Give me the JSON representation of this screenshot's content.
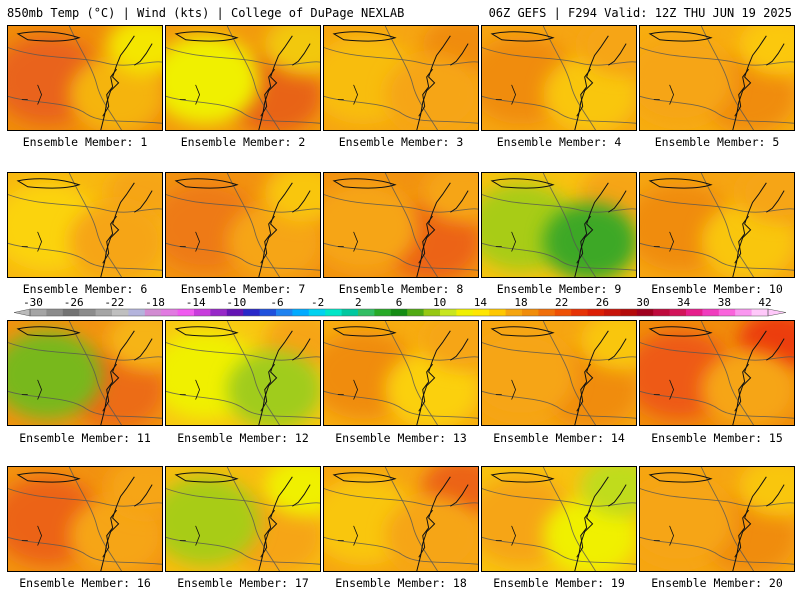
{
  "header": {
    "left": "850mb Temp (°C) | Wind (kts) | College of DuPage NEXLAB",
    "right": "06Z GEFS | F294 Valid: 12Z THU JUN 19 2025"
  },
  "colorbar": {
    "labels": [
      "-30",
      "-26",
      "-22",
      "-18",
      "-14",
      "-10",
      "-6",
      "-2",
      "2",
      "6",
      "10",
      "14",
      "18",
      "22",
      "26",
      "30",
      "34",
      "38",
      "42"
    ],
    "colors": [
      "#a5a5a5",
      "#8c8c8c",
      "#737373",
      "#8c8c8c",
      "#a5a5a5",
      "#bfbfbf",
      "#b4b4dc",
      "#d28cd2",
      "#e17ae1",
      "#f05af0",
      "#c83cdc",
      "#9628c8",
      "#6414b4",
      "#2828c8",
      "#1e50dc",
      "#1e82f0",
      "#00aaff",
      "#00d2f0",
      "#00e6c8",
      "#00c8a0",
      "#32be64",
      "#28aa28",
      "#148c14",
      "#50aa14",
      "#96c814",
      "#c8e61e",
      "#f0f000",
      "#ffe600",
      "#ffc800",
      "#f5a50f",
      "#f08c0a",
      "#f06e0a",
      "#ee5005",
      "#e63205",
      "#dc1e05",
      "#c8140a",
      "#b40a0a",
      "#a0001e",
      "#be0a3c",
      "#d2145a",
      "#e61e8c",
      "#f03cbe",
      "#fa64dc",
      "#fa96f0",
      "#ffc8fa"
    ]
  },
  "panels": [
    {
      "caption": "Ensemble Member: 1",
      "base": "#f08c0a",
      "blobs": [
        {
          "c": "#e9641e"
        },
        {
          "c": "#f5b40c"
        },
        {
          "c": "#f4e600"
        }
      ]
    },
    {
      "caption": "Ensemble Member: 2",
      "base": "#f29a0c",
      "blobs": [
        {
          "c": "#e86416"
        },
        {
          "c": "#f2c80c"
        },
        {
          "c": "#f0f000"
        }
      ]
    },
    {
      "caption": "Ensemble Member: 3",
      "base": "#f6a512",
      "blobs": [
        {
          "c": "#f08c0a"
        },
        {
          "c": "#f8bd10"
        },
        {
          "c": "#f6a512"
        }
      ]
    },
    {
      "caption": "Ensemble Member: 4",
      "base": "#f6a512",
      "blobs": [
        {
          "c": "#f08c0a"
        },
        {
          "c": "#f9c60e"
        },
        {
          "c": "#f6a512"
        }
      ]
    },
    {
      "caption": "Ensemble Member: 5",
      "base": "#f7ac10",
      "blobs": [
        {
          "c": "#f08c0a"
        },
        {
          "c": "#fbc80c"
        },
        {
          "c": "#f6a512"
        }
      ]
    },
    {
      "caption": "Ensemble Member: 6",
      "base": "#f8b810",
      "blobs": [
        {
          "c": "#f6a512"
        },
        {
          "c": "#fbd308"
        },
        {
          "c": "#f6a512"
        }
      ]
    },
    {
      "caption": "Ensemble Member: 7",
      "base": "#f29210",
      "blobs": [
        {
          "c": "#ee7a12"
        },
        {
          "c": "#f6a512"
        },
        {
          "c": "#f9c60e"
        }
      ]
    },
    {
      "caption": "Ensemble Member: 8",
      "base": "#f29210",
      "blobs": [
        {
          "c": "#ec6416"
        },
        {
          "c": "#f6a512"
        },
        {
          "c": "#f6a512"
        }
      ]
    },
    {
      "caption": "Ensemble Member: 9",
      "base": "#f8c210",
      "blobs": [
        {
          "c": "#f6a512"
        },
        {
          "c": "#a8cc18"
        },
        {
          "c": "#3ca828"
        }
      ]
    },
    {
      "caption": "Ensemble Member: 10",
      "base": "#f6a512",
      "blobs": [
        {
          "c": "#f08c0a"
        },
        {
          "c": "#f9c60e"
        },
        {
          "c": "#f6a512"
        }
      ]
    },
    {
      "caption": "Ensemble Member: 11",
      "base": "#f29210",
      "blobs": [
        {
          "c": "#ec6c16"
        },
        {
          "c": "#f6b412"
        },
        {
          "c": "#78b81e"
        }
      ]
    },
    {
      "caption": "Ensemble Member: 12",
      "base": "#f8c812",
      "blobs": [
        {
          "c": "#f6a512"
        },
        {
          "c": "#f0f000"
        },
        {
          "c": "#a0cc1e"
        }
      ]
    },
    {
      "caption": "Ensemble Member: 13",
      "base": "#f7ac10",
      "blobs": [
        {
          "c": "#f08c0a"
        },
        {
          "c": "#fbd008"
        },
        {
          "c": "#f6a512"
        }
      ]
    },
    {
      "caption": "Ensemble Member: 14",
      "base": "#f6a512",
      "blobs": [
        {
          "c": "#f08c0a"
        },
        {
          "c": "#f9c60e"
        },
        {
          "c": "#f6a512"
        }
      ]
    },
    {
      "caption": "Ensemble Member: 15",
      "base": "#f08c0a",
      "blobs": [
        {
          "c": "#ec3c10"
        },
        {
          "c": "#ee5a14"
        },
        {
          "c": "#f6a512"
        }
      ]
    },
    {
      "caption": "Ensemble Member: 16",
      "base": "#f29210",
      "blobs": [
        {
          "c": "#ec6416"
        },
        {
          "c": "#f6a512"
        },
        {
          "c": "#f6a512"
        }
      ]
    },
    {
      "caption": "Ensemble Member: 17",
      "base": "#f8bc10",
      "blobs": [
        {
          "c": "#f6a512"
        },
        {
          "c": "#f0f000"
        },
        {
          "c": "#a8cc18"
        }
      ]
    },
    {
      "caption": "Ensemble Member: 18",
      "base": "#f6a512",
      "blobs": [
        {
          "c": "#ec6416"
        },
        {
          "c": "#f9c60e"
        },
        {
          "c": "#f6a512"
        }
      ]
    },
    {
      "caption": "Ensemble Member: 19",
      "base": "#f8c210",
      "blobs": [
        {
          "c": "#f6a512"
        },
        {
          "c": "#f0f000"
        },
        {
          "c": "#c0dc1e"
        }
      ]
    },
    {
      "caption": "Ensemble Member: 20",
      "base": "#f6a512",
      "blobs": [
        {
          "c": "#f08c0a"
        },
        {
          "c": "#f9c60e"
        },
        {
          "c": "#f6a512"
        }
      ]
    }
  ]
}
